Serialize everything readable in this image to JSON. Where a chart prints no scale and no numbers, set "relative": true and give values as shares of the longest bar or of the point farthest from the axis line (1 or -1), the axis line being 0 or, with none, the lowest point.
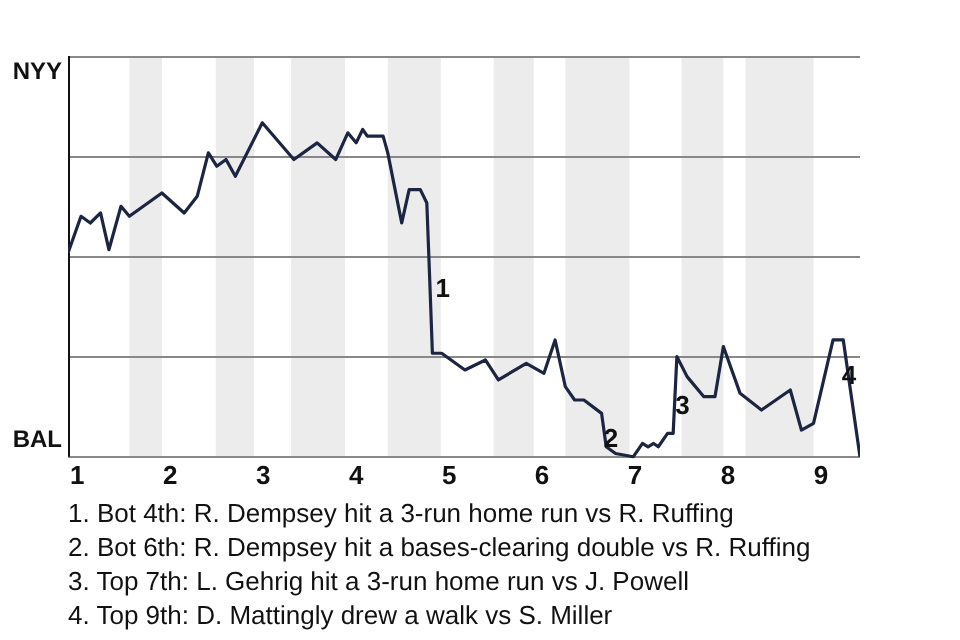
{
  "chart_data": {
    "type": "line",
    "relative": true,
    "x": [
      0.9,
      1.04,
      1.14,
      1.25,
      1.34,
      1.47,
      1.56,
      1.91,
      2.15,
      2.29,
      2.41,
      2.5,
      2.6,
      2.7,
      2.99,
      3.33,
      3.58,
      3.78,
      3.91,
      4.0,
      4.07,
      4.12,
      4.29,
      4.34,
      4.49,
      4.57,
      4.69,
      4.76,
      4.79,
      4.82,
      4.92,
      5.17,
      5.39,
      5.53,
      5.83,
      6.02,
      6.14,
      6.25,
      6.35,
      6.45,
      6.64,
      6.69,
      6.79,
      6.98,
      7.08,
      7.14,
      7.2,
      7.25,
      7.35,
      7.41,
      7.45,
      7.56,
      7.74,
      7.86,
      7.95,
      8.13,
      8.36,
      8.67,
      8.79,
      8.92,
      9.13,
      9.24,
      9.42
    ],
    "series": [
      {
        "color": "#1c2541",
        "values": [
          0.61,
          0.72,
          0.7,
          0.73,
          0.62,
          0.75,
          0.72,
          0.79,
          0.73,
          0.78,
          0.91,
          0.87,
          0.89,
          0.84,
          1,
          0.89,
          0.94,
          0.89,
          0.97,
          0.94,
          0.98,
          0.96,
          0.96,
          0.91,
          0.7,
          0.8,
          0.8,
          0.76,
          0.54,
          0.31,
          0.31,
          0.26,
          0.29,
          0.23,
          0.28,
          0.25,
          0.35,
          0.21,
          0.17,
          0.17,
          0.13,
          0.03,
          0.01,
          0,
          0.04,
          0.03,
          0.04,
          0.03,
          0.07,
          0.07,
          0.3,
          0.24,
          0.18,
          0.18,
          0.33,
          0.19,
          0.14,
          0.2,
          0.08,
          0.1,
          0.35,
          0.35,
          0
        ]
      }
    ],
    "xlim": [
      0.9,
      9.42
    ],
    "xticks": [
      1,
      2,
      3,
      4,
      5,
      6,
      7,
      8,
      9
    ],
    "grid": "y",
    "marker": "none",
    "line_style": "solid",
    "bands": [
      {
        "axis": "x",
        "from": 1.56,
        "to": 1.91,
        "color": "#ececec"
      },
      {
        "axis": "x",
        "from": 2.49,
        "to": 2.9,
        "color": "#ececec"
      },
      {
        "axis": "x",
        "from": 3.3,
        "to": 3.88,
        "color": "#ececec"
      },
      {
        "axis": "x",
        "from": 4.34,
        "to": 4.91,
        "color": "#ececec"
      },
      {
        "axis": "x",
        "from": 5.48,
        "to": 5.91,
        "color": "#ececec"
      },
      {
        "axis": "x",
        "from": 6.25,
        "to": 6.94,
        "color": "#ececec"
      },
      {
        "axis": "x",
        "from": 7.5,
        "to": 7.95,
        "color": "#ececec"
      },
      {
        "axis": "x",
        "from": 8.19,
        "to": 8.92,
        "color": "#ececec"
      }
    ],
    "annotations": [
      "NYY",
      "BAL",
      {
        "text": "1",
        "x": 4.93,
        "y": 0.5
      },
      {
        "text": "2",
        "x": 6.74,
        "y": 0.05
      },
      {
        "text": "3",
        "x": 7.51,
        "y": 0.15
      },
      {
        "text": "4",
        "x": 9.3,
        "y": 0.24
      },
      "1. Bot 4th: R. Dempsey hit a 3-run home run vs R. Ruffing",
      "2. Bot 6th: R. Dempsey hit a bases-clearing double vs R. Ruffing",
      "3. Top 7th: L. Gehrig hit a 3-run home run vs J. Powell",
      "4. Top 9th: D. Mattingly drew a walk vs S. Miller"
    ]
  }
}
